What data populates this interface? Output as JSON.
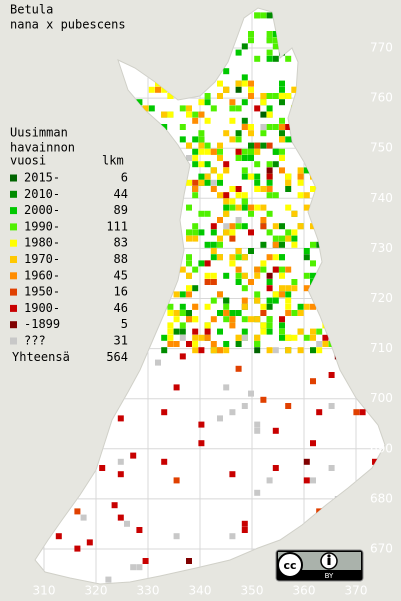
{
  "title": [
    "Betula",
    "nana x pubescens"
  ],
  "legend": {
    "heading": [
      "Uusimman",
      "havainnon"
    ],
    "col_year": "vuosi",
    "col_count": "lkm",
    "rows": [
      {
        "label": "2015-",
        "count": 6,
        "color": "#006400"
      },
      {
        "label": "2010-",
        "count": 44,
        "color": "#008c00"
      },
      {
        "label": "2000-",
        "count": 89,
        "color": "#00c800"
      },
      {
        "label": "1990-",
        "count": 111,
        "color": "#50f000"
      },
      {
        "label": "1980-",
        "count": 83,
        "color": "#ffff00"
      },
      {
        "label": "1970-",
        "count": 88,
        "color": "#ffc800"
      },
      {
        "label": "1960-",
        "count": 45,
        "color": "#ff8c00"
      },
      {
        "label": "1950-",
        "count": 16,
        "color": "#e04000"
      },
      {
        "label": "1900-",
        "count": 46,
        "color": "#c80000"
      },
      {
        "label": "-1899",
        "count": 5,
        "color": "#800000"
      },
      {
        "label": "???",
        "count": 31,
        "color": "#c8c8c8"
      }
    ],
    "total": {
      "label": "Yhteensä",
      "count": 564
    }
  },
  "grid": {
    "y_labels": [
      670,
      680,
      690,
      700,
      710,
      720,
      730,
      740,
      750,
      760,
      770
    ],
    "x_labels": [
      310,
      320,
      330,
      340,
      350,
      360,
      370
    ]
  },
  "license": {
    "icon": "cc",
    "by": "BY"
  }
}
